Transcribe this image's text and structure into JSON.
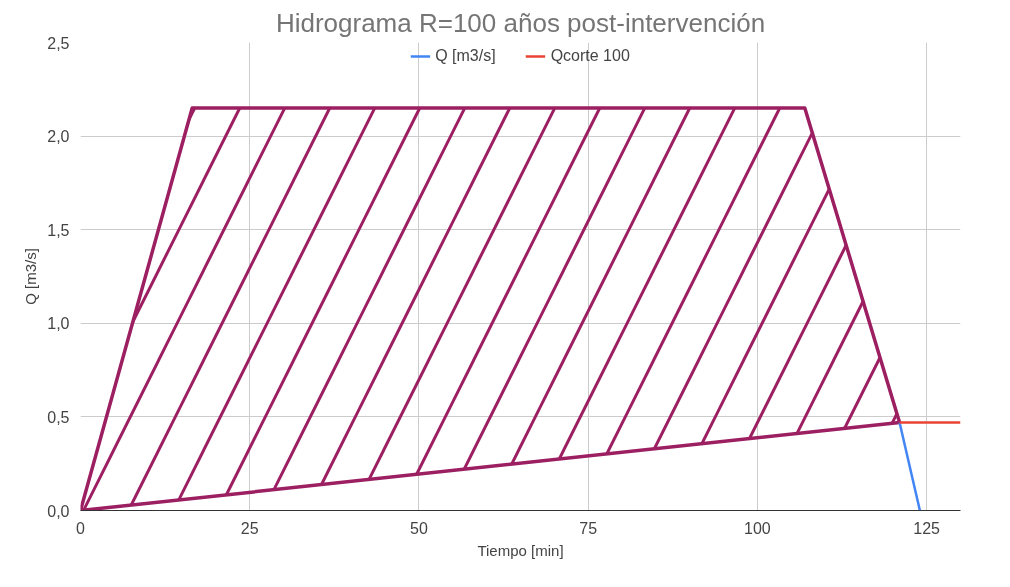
{
  "chart_data": {
    "type": "line",
    "title": "Hidrograma R=100 años post-intervención",
    "xlabel": "Tiempo [min]",
    "ylabel": "Q [m3/s]",
    "series": [
      {
        "type": "area",
        "color": "#9c1f62",
        "x": [
          0,
          16.5,
          107,
          121,
          0
        ],
        "values": [
          0,
          2.15,
          2.15,
          0.47,
          0
        ]
      },
      {
        "name": "Q [m3/s]",
        "color": "#4285f4",
        "x": [
          121,
          124
        ],
        "values": [
          0.47,
          0
        ]
      },
      {
        "name": "Qcorte 100",
        "color": "#ea4335",
        "x": [
          121,
          130
        ],
        "values": [
          0.47,
          0.47
        ]
      }
    ],
    "xlim": [
      0,
      130
    ],
    "xticks": [
      0,
      25,
      50,
      75,
      100,
      125
    ],
    "ylim": [
      0,
      2.5
    ],
    "yticks": [
      {
        "value": 0,
        "label": "0,0"
      },
      {
        "value": 0.5,
        "label": "0,5"
      },
      {
        "value": 1,
        "label": "1,0"
      },
      {
        "value": 1.5,
        "label": "1,5"
      },
      {
        "value": 2,
        "label": "2,0"
      },
      {
        "value": 2.5,
        "label": "2,5"
      }
    ],
    "grid": true,
    "legend": "top"
  }
}
